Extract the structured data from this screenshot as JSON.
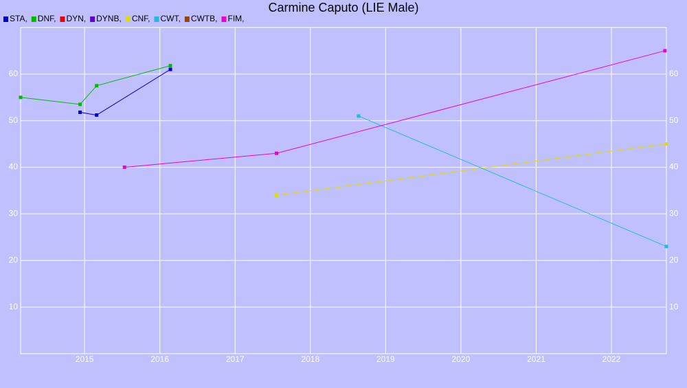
{
  "chart_data": {
    "type": "line",
    "title": "Carmine Caputo (LIE Male)",
    "xlim": [
      2014.15,
      2022.73
    ],
    "xticks": [
      2015,
      2016,
      2017,
      2018,
      2019,
      2020,
      2021,
      2022
    ],
    "ylim": [
      0,
      70
    ],
    "yticks": [
      10,
      20,
      30,
      40,
      50,
      60
    ],
    "grid": true,
    "series": [
      {
        "name": "STA,",
        "color": "#0000cc",
        "x": [
          2014.94,
          2015.16,
          2016.14
        ],
        "values": [
          51.8,
          51.2,
          61
        ]
      },
      {
        "name": "DNF,",
        "color": "#00bb00",
        "x": [
          2014.15,
          2014.94,
          2015.16,
          2016.14
        ],
        "values": [
          55,
          53.5,
          57.5,
          61.8
        ]
      },
      {
        "name": "DYN,",
        "color": "#ee0000",
        "x": [],
        "values": []
      },
      {
        "name": "DYNB,",
        "color": "#6600cc",
        "x": [],
        "values": []
      },
      {
        "name": "CNF,",
        "color": "#dddd00",
        "x": [
          2017.55,
          2022.73
        ],
        "values": [
          34,
          45
        ]
      },
      {
        "name": "CWT,",
        "color": "#22bbdd",
        "x": [
          2018.64,
          2022.73
        ],
        "values": [
          51,
          23
        ]
      },
      {
        "name": "CWTB,",
        "color": "#994400",
        "x": [],
        "values": []
      },
      {
        "name": "FIM,",
        "color": "#ee00cc",
        "x": [
          2015.53,
          2017.55,
          2022.71
        ],
        "values": [
          40,
          43,
          65
        ]
      }
    ]
  }
}
